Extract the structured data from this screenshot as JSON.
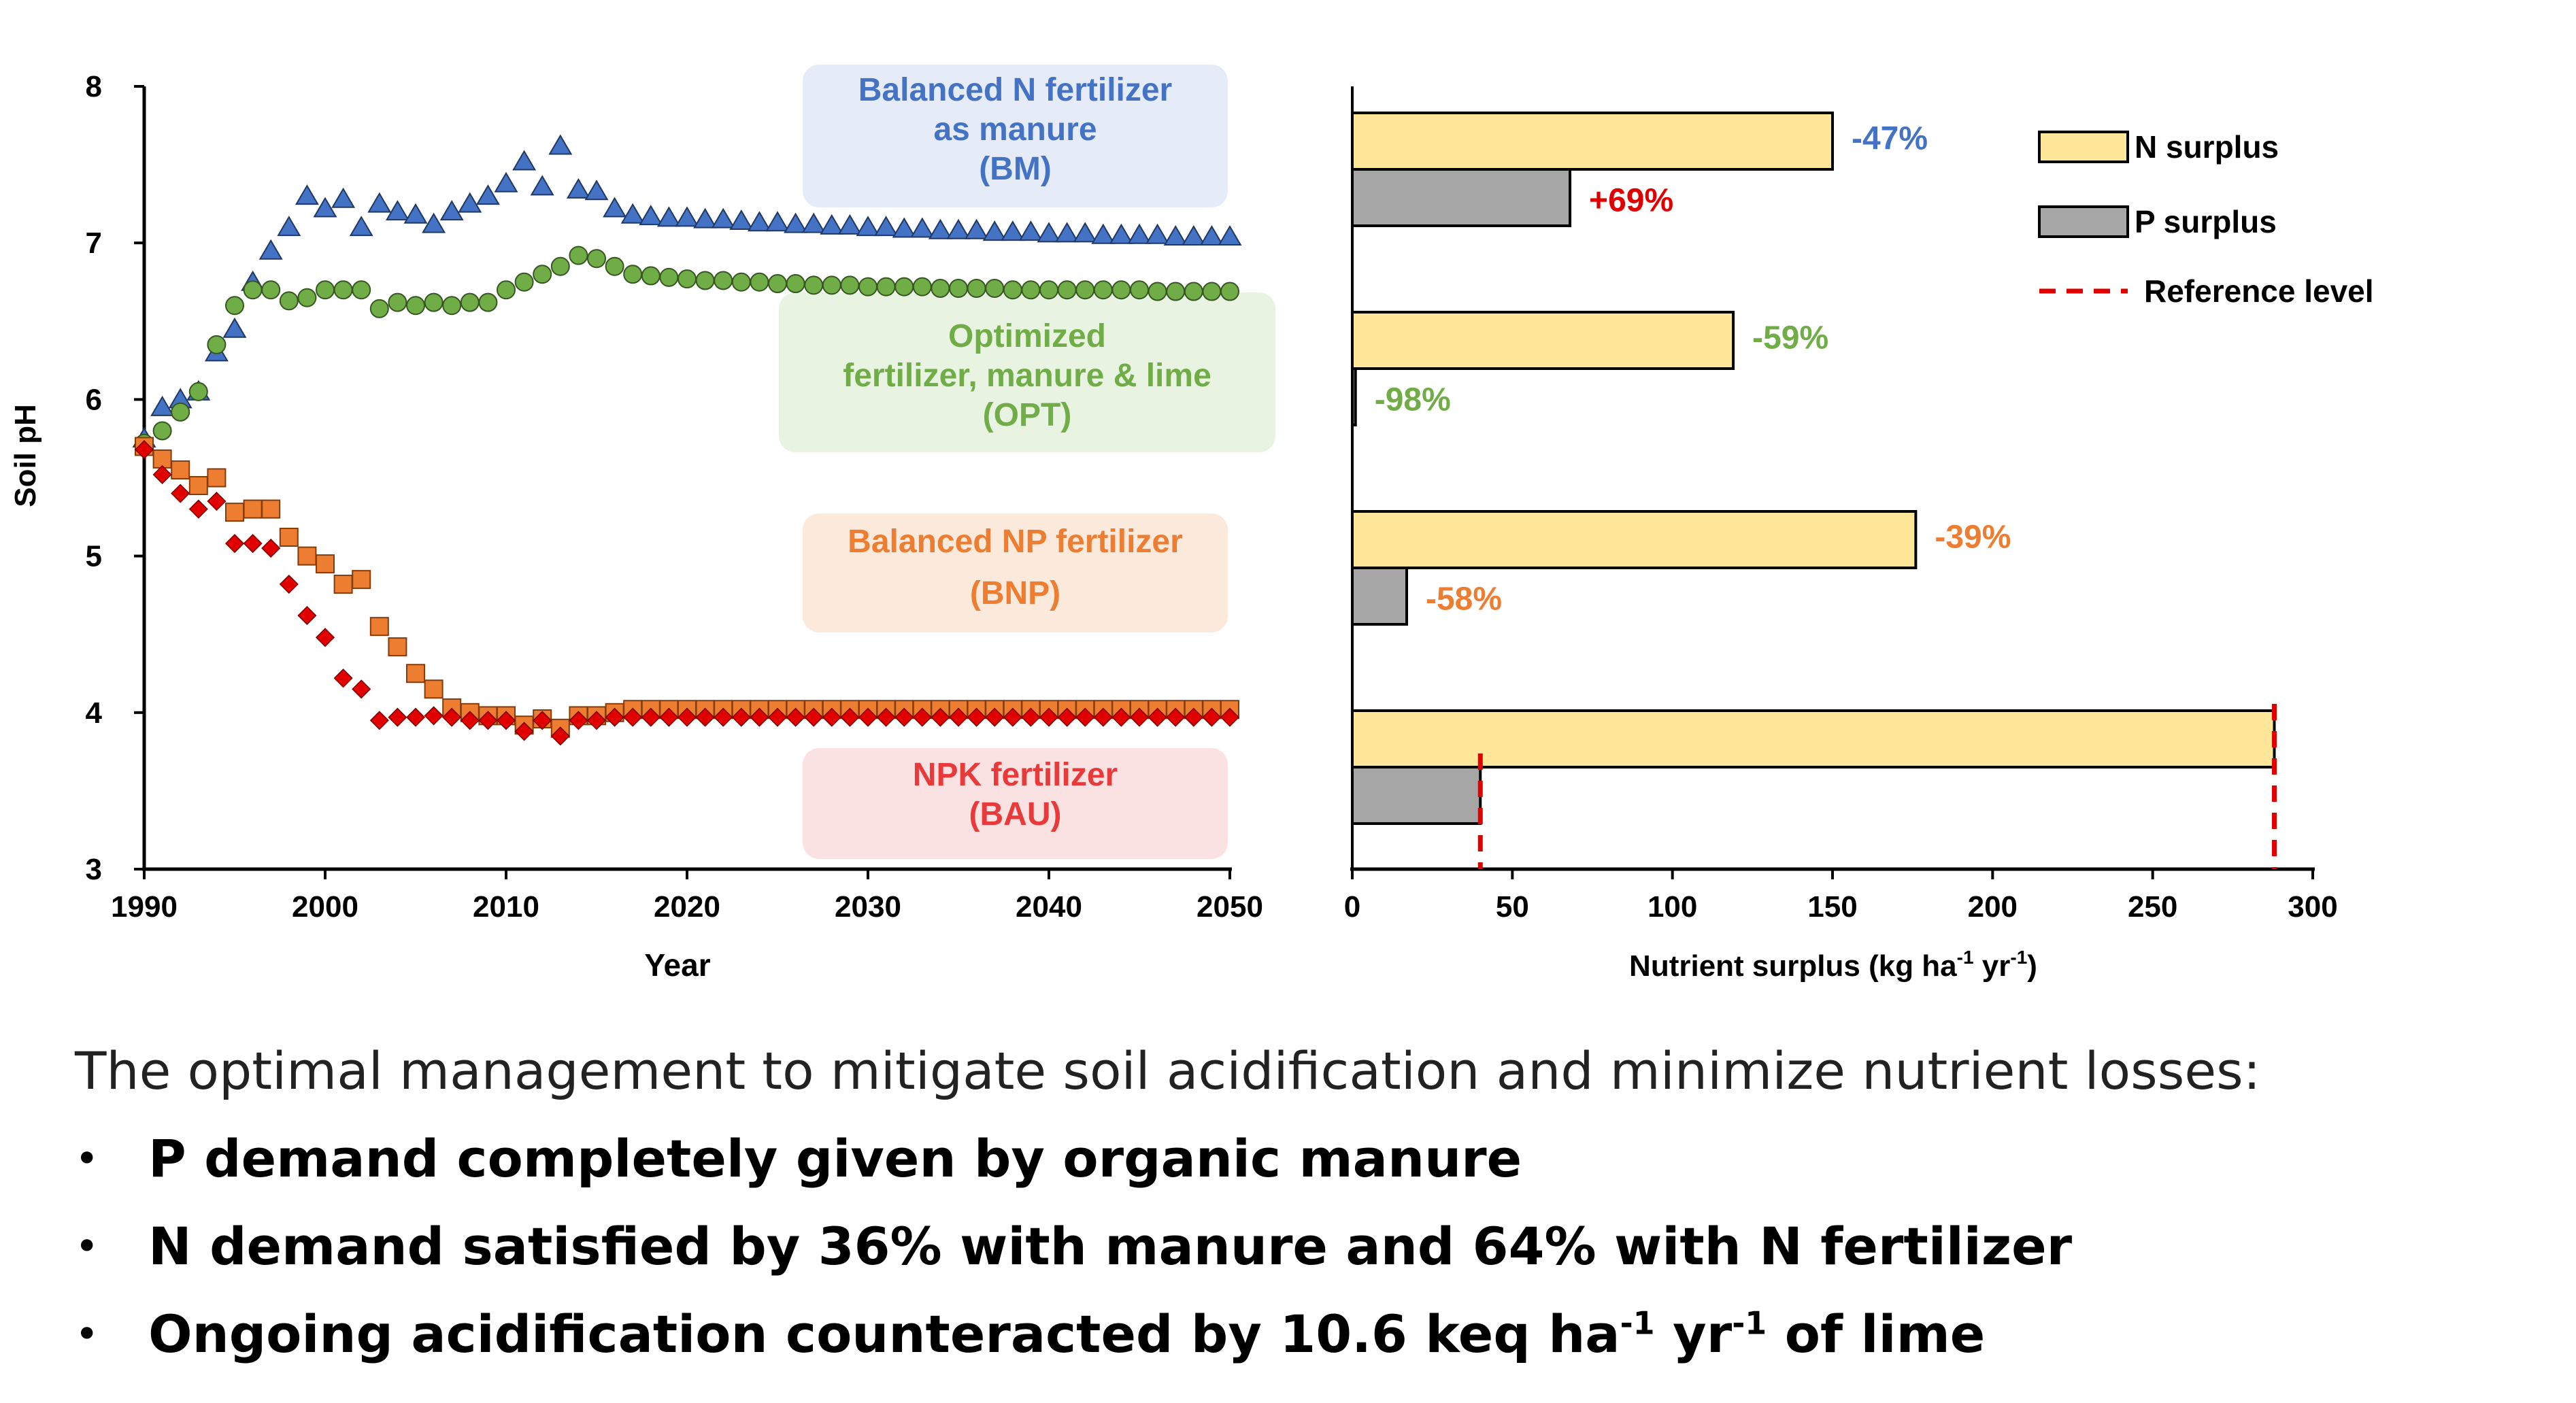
{
  "charts": {
    "ph": {
      "ylabel": "Soil pH",
      "xlabel": "Year",
      "xlim": [
        1990,
        2050
      ],
      "ylim": [
        3,
        8
      ],
      "xticks": [
        "1990",
        "2000",
        "2010",
        "2020",
        "2030",
        "2040",
        "2050"
      ],
      "yticks": [
        "3",
        "4",
        "5",
        "6",
        "7",
        "8"
      ],
      "labels": [
        {
          "lines": [
            "Balanced N fertilizer",
            "as manure",
            "(BM)"
          ],
          "color": "#4472c4",
          "fill": "#e6ecf7"
        },
        {
          "lines": [
            "Optimized",
            "fertilizer, manure & lime",
            "(OPT)"
          ],
          "color": "#70ad47",
          "fill": "#e8f3e2"
        },
        {
          "lines": [
            "Balanced NP fertilizer",
            "(BNP)"
          ],
          "color": "#ed7d31",
          "fill": "#fbe9dc"
        },
        {
          "lines": [
            "NPK fertilizer",
            "(BAU)"
          ],
          "color": "#e83a3a",
          "fill": "#fbe2e2"
        }
      ]
    },
    "surplus": {
      "xlabel": "Nutrient surplus (kg ha",
      "xlabel_sup1": "-1",
      "xlabel_mid": " yr",
      "xlabel_sup2": "-1",
      "xlabel_end": ")",
      "xticks": [
        "0",
        "50",
        "100",
        "150",
        "200",
        "250",
        "300"
      ],
      "legend": {
        "n": "N surplus",
        "p": "P surplus",
        "ref": "Reference level"
      },
      "percent_labels": [
        "-47%",
        "+69%",
        "-59%",
        "-98%",
        "-39%",
        "-58%"
      ]
    }
  },
  "chart_data": [
    {
      "type": "scatter",
      "xlabel": "Year",
      "ylabel": "Soil pH",
      "xlim": [
        1990,
        2050
      ],
      "ylim": [
        3,
        8
      ],
      "grid": false,
      "series": [
        {
          "name": "BM",
          "color": "#4472c4",
          "marker": "triangle",
          "x": [
            1990,
            1991,
            1992,
            1993,
            1994,
            1995,
            1996,
            1997,
            1998,
            1999,
            2000,
            2001,
            2002,
            2003,
            2004,
            2005,
            2006,
            2007,
            2008,
            2009,
            2010,
            2011,
            2012,
            2013,
            2014,
            2015,
            2016,
            2017,
            2018,
            2019,
            2020,
            2021,
            2022,
            2023,
            2024,
            2025,
            2026,
            2027,
            2028,
            2029,
            2030,
            2031,
            2032,
            2033,
            2034,
            2035,
            2036,
            2037,
            2038,
            2039,
            2040,
            2041,
            2042,
            2043,
            2044,
            2045,
            2046,
            2047,
            2048,
            2049,
            2050
          ],
          "y": [
            5.75,
            5.95,
            6.0,
            6.05,
            6.3,
            6.45,
            6.75,
            6.95,
            7.1,
            7.3,
            7.22,
            7.28,
            7.1,
            7.25,
            7.2,
            7.18,
            7.12,
            7.2,
            7.25,
            7.3,
            7.38,
            7.52,
            7.36,
            7.62,
            7.34,
            7.33,
            7.22,
            7.18,
            7.17,
            7.16,
            7.16,
            7.15,
            7.15,
            7.14,
            7.13,
            7.13,
            7.12,
            7.12,
            7.11,
            7.11,
            7.1,
            7.1,
            7.09,
            7.09,
            7.08,
            7.08,
            7.08,
            7.07,
            7.07,
            7.07,
            7.06,
            7.06,
            7.06,
            7.05,
            7.05,
            7.05,
            7.05,
            7.04,
            7.04,
            7.04,
            7.04
          ]
        },
        {
          "name": "OPT",
          "color": "#70ad47",
          "marker": "circle",
          "x": [
            1990,
            1991,
            1992,
            1993,
            1994,
            1995,
            1996,
            1997,
            1998,
            1999,
            2000,
            2001,
            2002,
            2003,
            2004,
            2005,
            2006,
            2007,
            2008,
            2009,
            2010,
            2011,
            2012,
            2013,
            2014,
            2015,
            2016,
            2017,
            2018,
            2019,
            2020,
            2021,
            2022,
            2023,
            2024,
            2025,
            2026,
            2027,
            2028,
            2029,
            2030,
            2031,
            2032,
            2033,
            2034,
            2035,
            2036,
            2037,
            2038,
            2039,
            2040,
            2041,
            2042,
            2043,
            2044,
            2045,
            2046,
            2047,
            2048,
            2049,
            2050
          ],
          "y": [
            5.72,
            5.8,
            5.92,
            6.05,
            6.35,
            6.6,
            6.7,
            6.7,
            6.63,
            6.65,
            6.7,
            6.7,
            6.7,
            6.58,
            6.62,
            6.6,
            6.62,
            6.6,
            6.62,
            6.62,
            6.7,
            6.75,
            6.8,
            6.85,
            6.92,
            6.9,
            6.85,
            6.8,
            6.79,
            6.78,
            6.77,
            6.76,
            6.76,
            6.75,
            6.75,
            6.74,
            6.74,
            6.73,
            6.73,
            6.73,
            6.72,
            6.72,
            6.72,
            6.72,
            6.71,
            6.71,
            6.71,
            6.71,
            6.7,
            6.7,
            6.7,
            6.7,
            6.7,
            6.7,
            6.7,
            6.7,
            6.69,
            6.69,
            6.69,
            6.69,
            6.69
          ]
        },
        {
          "name": "BNP",
          "color": "#ed7d31",
          "marker": "square",
          "x": [
            1990,
            1991,
            1992,
            1993,
            1994,
            1995,
            1996,
            1997,
            1998,
            1999,
            2000,
            2001,
            2002,
            2003,
            2004,
            2005,
            2006,
            2007,
            2008,
            2009,
            2010,
            2011,
            2012,
            2013,
            2014,
            2015,
            2016,
            2017,
            2018,
            2019,
            2020,
            2021,
            2022,
            2023,
            2024,
            2025,
            2026,
            2027,
            2028,
            2029,
            2030,
            2031,
            2032,
            2033,
            2034,
            2035,
            2036,
            2037,
            2038,
            2039,
            2040,
            2041,
            2042,
            2043,
            2044,
            2045,
            2046,
            2047,
            2048,
            2049,
            2050
          ],
          "y": [
            5.7,
            5.62,
            5.55,
            5.45,
            5.5,
            5.28,
            5.3,
            5.3,
            5.12,
            5.0,
            4.95,
            4.82,
            4.85,
            4.55,
            4.42,
            4.25,
            4.15,
            4.03,
            4.0,
            3.98,
            3.98,
            3.92,
            3.96,
            3.9,
            3.98,
            3.98,
            4.0,
            4.02,
            4.02,
            4.02,
            4.02,
            4.02,
            4.02,
            4.02,
            4.02,
            4.02,
            4.02,
            4.02,
            4.02,
            4.02,
            4.02,
            4.02,
            4.02,
            4.02,
            4.02,
            4.02,
            4.02,
            4.02,
            4.02,
            4.02,
            4.02,
            4.02,
            4.02,
            4.02,
            4.02,
            4.02,
            4.02,
            4.02,
            4.02,
            4.02,
            4.02
          ]
        },
        {
          "name": "BAU",
          "color": "#e00000",
          "marker": "diamond",
          "x": [
            1990,
            1991,
            1992,
            1993,
            1994,
            1995,
            1996,
            1997,
            1998,
            1999,
            2000,
            2001,
            2002,
            2003,
            2004,
            2005,
            2006,
            2007,
            2008,
            2009,
            2010,
            2011,
            2012,
            2013,
            2014,
            2015,
            2016,
            2017,
            2018,
            2019,
            2020,
            2021,
            2022,
            2023,
            2024,
            2025,
            2026,
            2027,
            2028,
            2029,
            2030,
            2031,
            2032,
            2033,
            2034,
            2035,
            2036,
            2037,
            2038,
            2039,
            2040,
            2041,
            2042,
            2043,
            2044,
            2045,
            2046,
            2047,
            2048,
            2049,
            2050
          ],
          "y": [
            5.68,
            5.52,
            5.4,
            5.3,
            5.35,
            5.08,
            5.08,
            5.05,
            4.82,
            4.62,
            4.48,
            4.22,
            4.15,
            3.95,
            3.97,
            3.97,
            3.98,
            3.97,
            3.95,
            3.95,
            3.95,
            3.88,
            3.95,
            3.85,
            3.95,
            3.95,
            3.97,
            3.97,
            3.97,
            3.97,
            3.97,
            3.97,
            3.97,
            3.97,
            3.97,
            3.97,
            3.97,
            3.97,
            3.97,
            3.97,
            3.97,
            3.97,
            3.97,
            3.97,
            3.97,
            3.97,
            3.97,
            3.97,
            3.97,
            3.97,
            3.97,
            3.97,
            3.97,
            3.97,
            3.97,
            3.97,
            3.97,
            3.97,
            3.97,
            3.97,
            3.97
          ]
        }
      ]
    },
    {
      "type": "bar",
      "orientation": "horizontal",
      "xlabel": "Nutrient surplus (kg ha-1 yr-1)",
      "xlim": [
        0,
        300
      ],
      "categories": [
        "BM",
        "OPT",
        "BNP",
        "BAU"
      ],
      "legend_position": "top-right",
      "series": [
        {
          "name": "N surplus",
          "color": "#ffe699",
          "values": [
            150,
            119,
            176,
            288
          ],
          "labels": [
            "-47%",
            "-59%",
            "-39%",
            ""
          ],
          "label_colors": [
            "#4472c4",
            "#70ad47",
            "#ed7d31",
            ""
          ]
        },
        {
          "name": "P surplus",
          "color": "#a6a6a6",
          "values": [
            68,
            1,
            17,
            40
          ],
          "labels": [
            "+69%",
            "-98%",
            "-58%",
            ""
          ],
          "label_colors": [
            "#e00000",
            "#70ad47",
            "#ed7d31",
            ""
          ]
        }
      ],
      "reference_levels": {
        "name": "Reference level",
        "color": "#e00000",
        "N": 288,
        "P": 40
      }
    }
  ],
  "caption": {
    "intro": "The optimal management to mitigate soil acidification and minimize nutrient losses:",
    "bullet_symbol": "•",
    "items": [
      {
        "text": "P demand completely given by organic manure"
      },
      {
        "text": "N demand satisfied by 36% with manure and 64% with N fertilizer"
      },
      {
        "pre": "Ongoing acidification counteracted by 10.6 keq ha",
        "sup1": "-1",
        "mid": " yr",
        "sup2": "-1",
        "post": " of lime"
      }
    ]
  }
}
